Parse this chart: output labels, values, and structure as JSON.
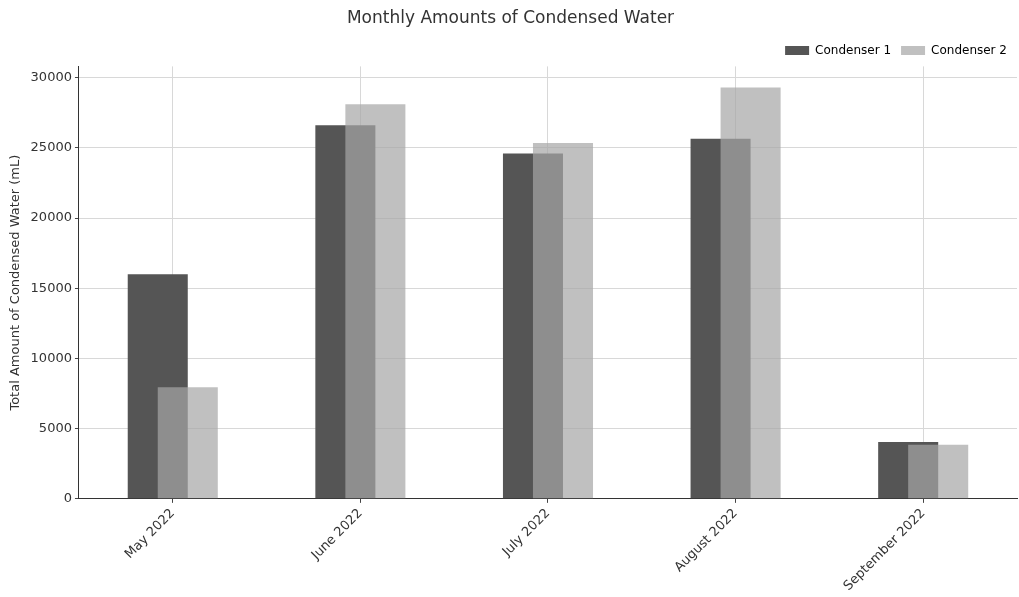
{
  "chart_data": {
    "type": "bar",
    "title": "Monthly Amounts of Condensed Water",
    "ylabel": "Total Amount of Condensed Water (mL)",
    "categories": [
      "May 2022",
      "June 2022",
      "July 2022",
      "August 2022",
      "September 2022"
    ],
    "series": [
      {
        "name": "Condenser 1",
        "color": "#555555",
        "values": [
          16000,
          26600,
          24600,
          25650,
          4050
        ]
      },
      {
        "name": "Condenser 2",
        "color": "#c0c0c0",
        "values": [
          7950,
          28100,
          25350,
          29300,
          3850
        ]
      }
    ],
    "ylim": [
      0,
      30800
    ],
    "yticks": [
      0,
      5000,
      10000,
      15000,
      20000,
      25000,
      30000
    ],
    "grid": true,
    "legend": "top right"
  }
}
